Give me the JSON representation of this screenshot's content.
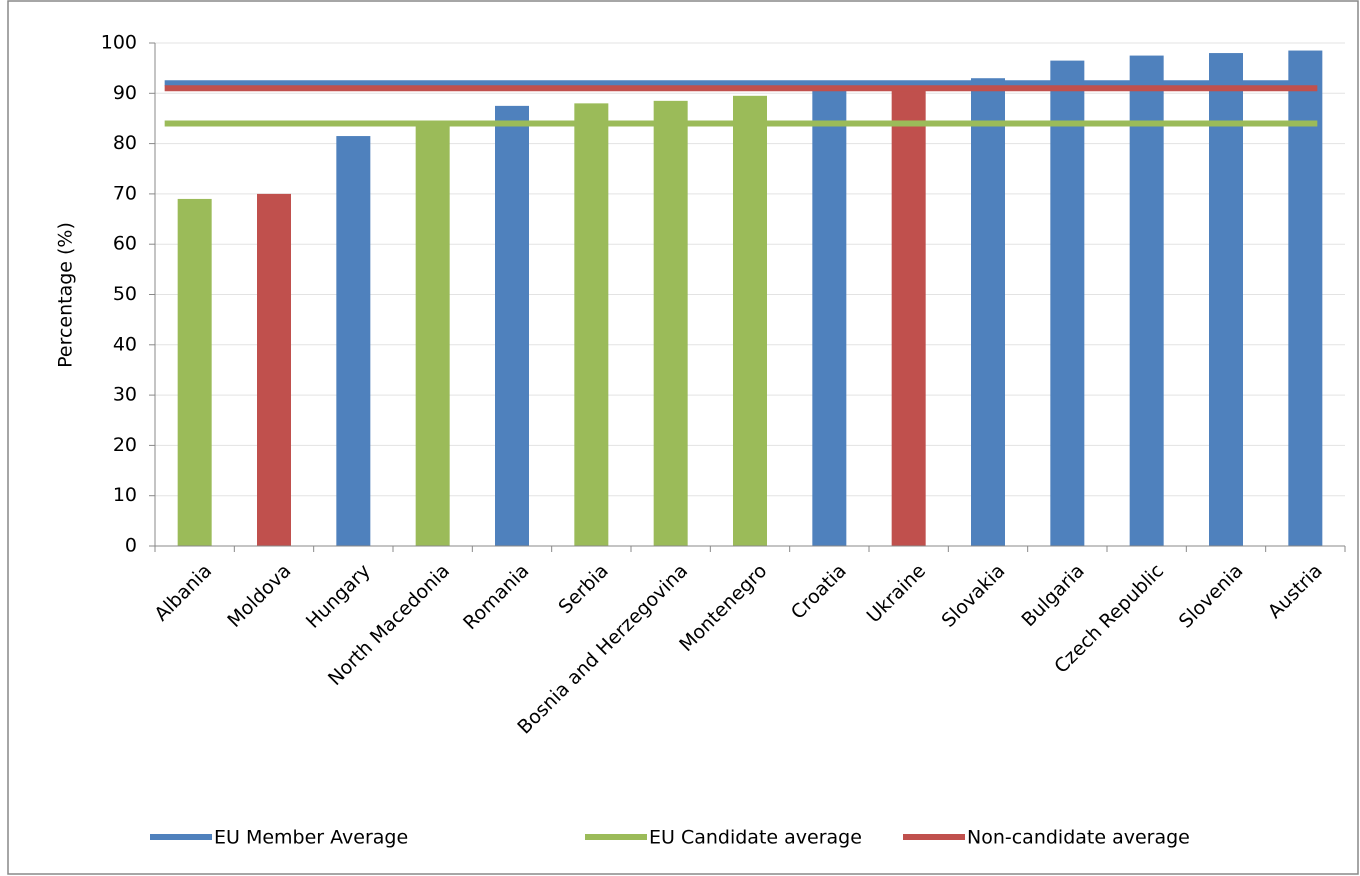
{
  "chart_data": {
    "type": "bar",
    "ylabel": "Percentage (%)",
    "categories": [
      "Albania",
      "Moldova",
      "Hungary",
      "North Macedonia",
      "Romania",
      "Serbia",
      "Bosnia and Herzegovina",
      "Montenegro",
      "Croatia",
      "Ukraine",
      "Slovakia",
      "Bulgaria",
      "Czech Republic",
      "Slovenia",
      "Austria"
    ],
    "values": [
      69,
      70,
      81.5,
      84,
      87.5,
      88,
      88.5,
      89.5,
      91,
      91,
      93,
      96.5,
      97.5,
      98,
      98.5
    ],
    "colors": [
      "#9bbb59",
      "#c0504d",
      "#4f81bd",
      "#9bbb59",
      "#4f81bd",
      "#9bbb59",
      "#9bbb59",
      "#9bbb59",
      "#4f81bd",
      "#c0504d",
      "#4f81bd",
      "#4f81bd",
      "#4f81bd",
      "#4f81bd",
      "#4f81bd"
    ],
    "series": [
      {
        "name": "EU Member Average",
        "color": "#4f81bd",
        "value": 92
      },
      {
        "name": "EU Candidate average",
        "color": "#9bbb59",
        "value": 84
      },
      {
        "name": "Non-candidate average",
        "color": "#c0504d",
        "value": 91
      }
    ],
    "ylim": [
      0,
      100
    ],
    "yticks": [
      0,
      10,
      20,
      30,
      40,
      50,
      60,
      70,
      80,
      90,
      100
    ],
    "grid": true,
    "legend": "bottom"
  }
}
